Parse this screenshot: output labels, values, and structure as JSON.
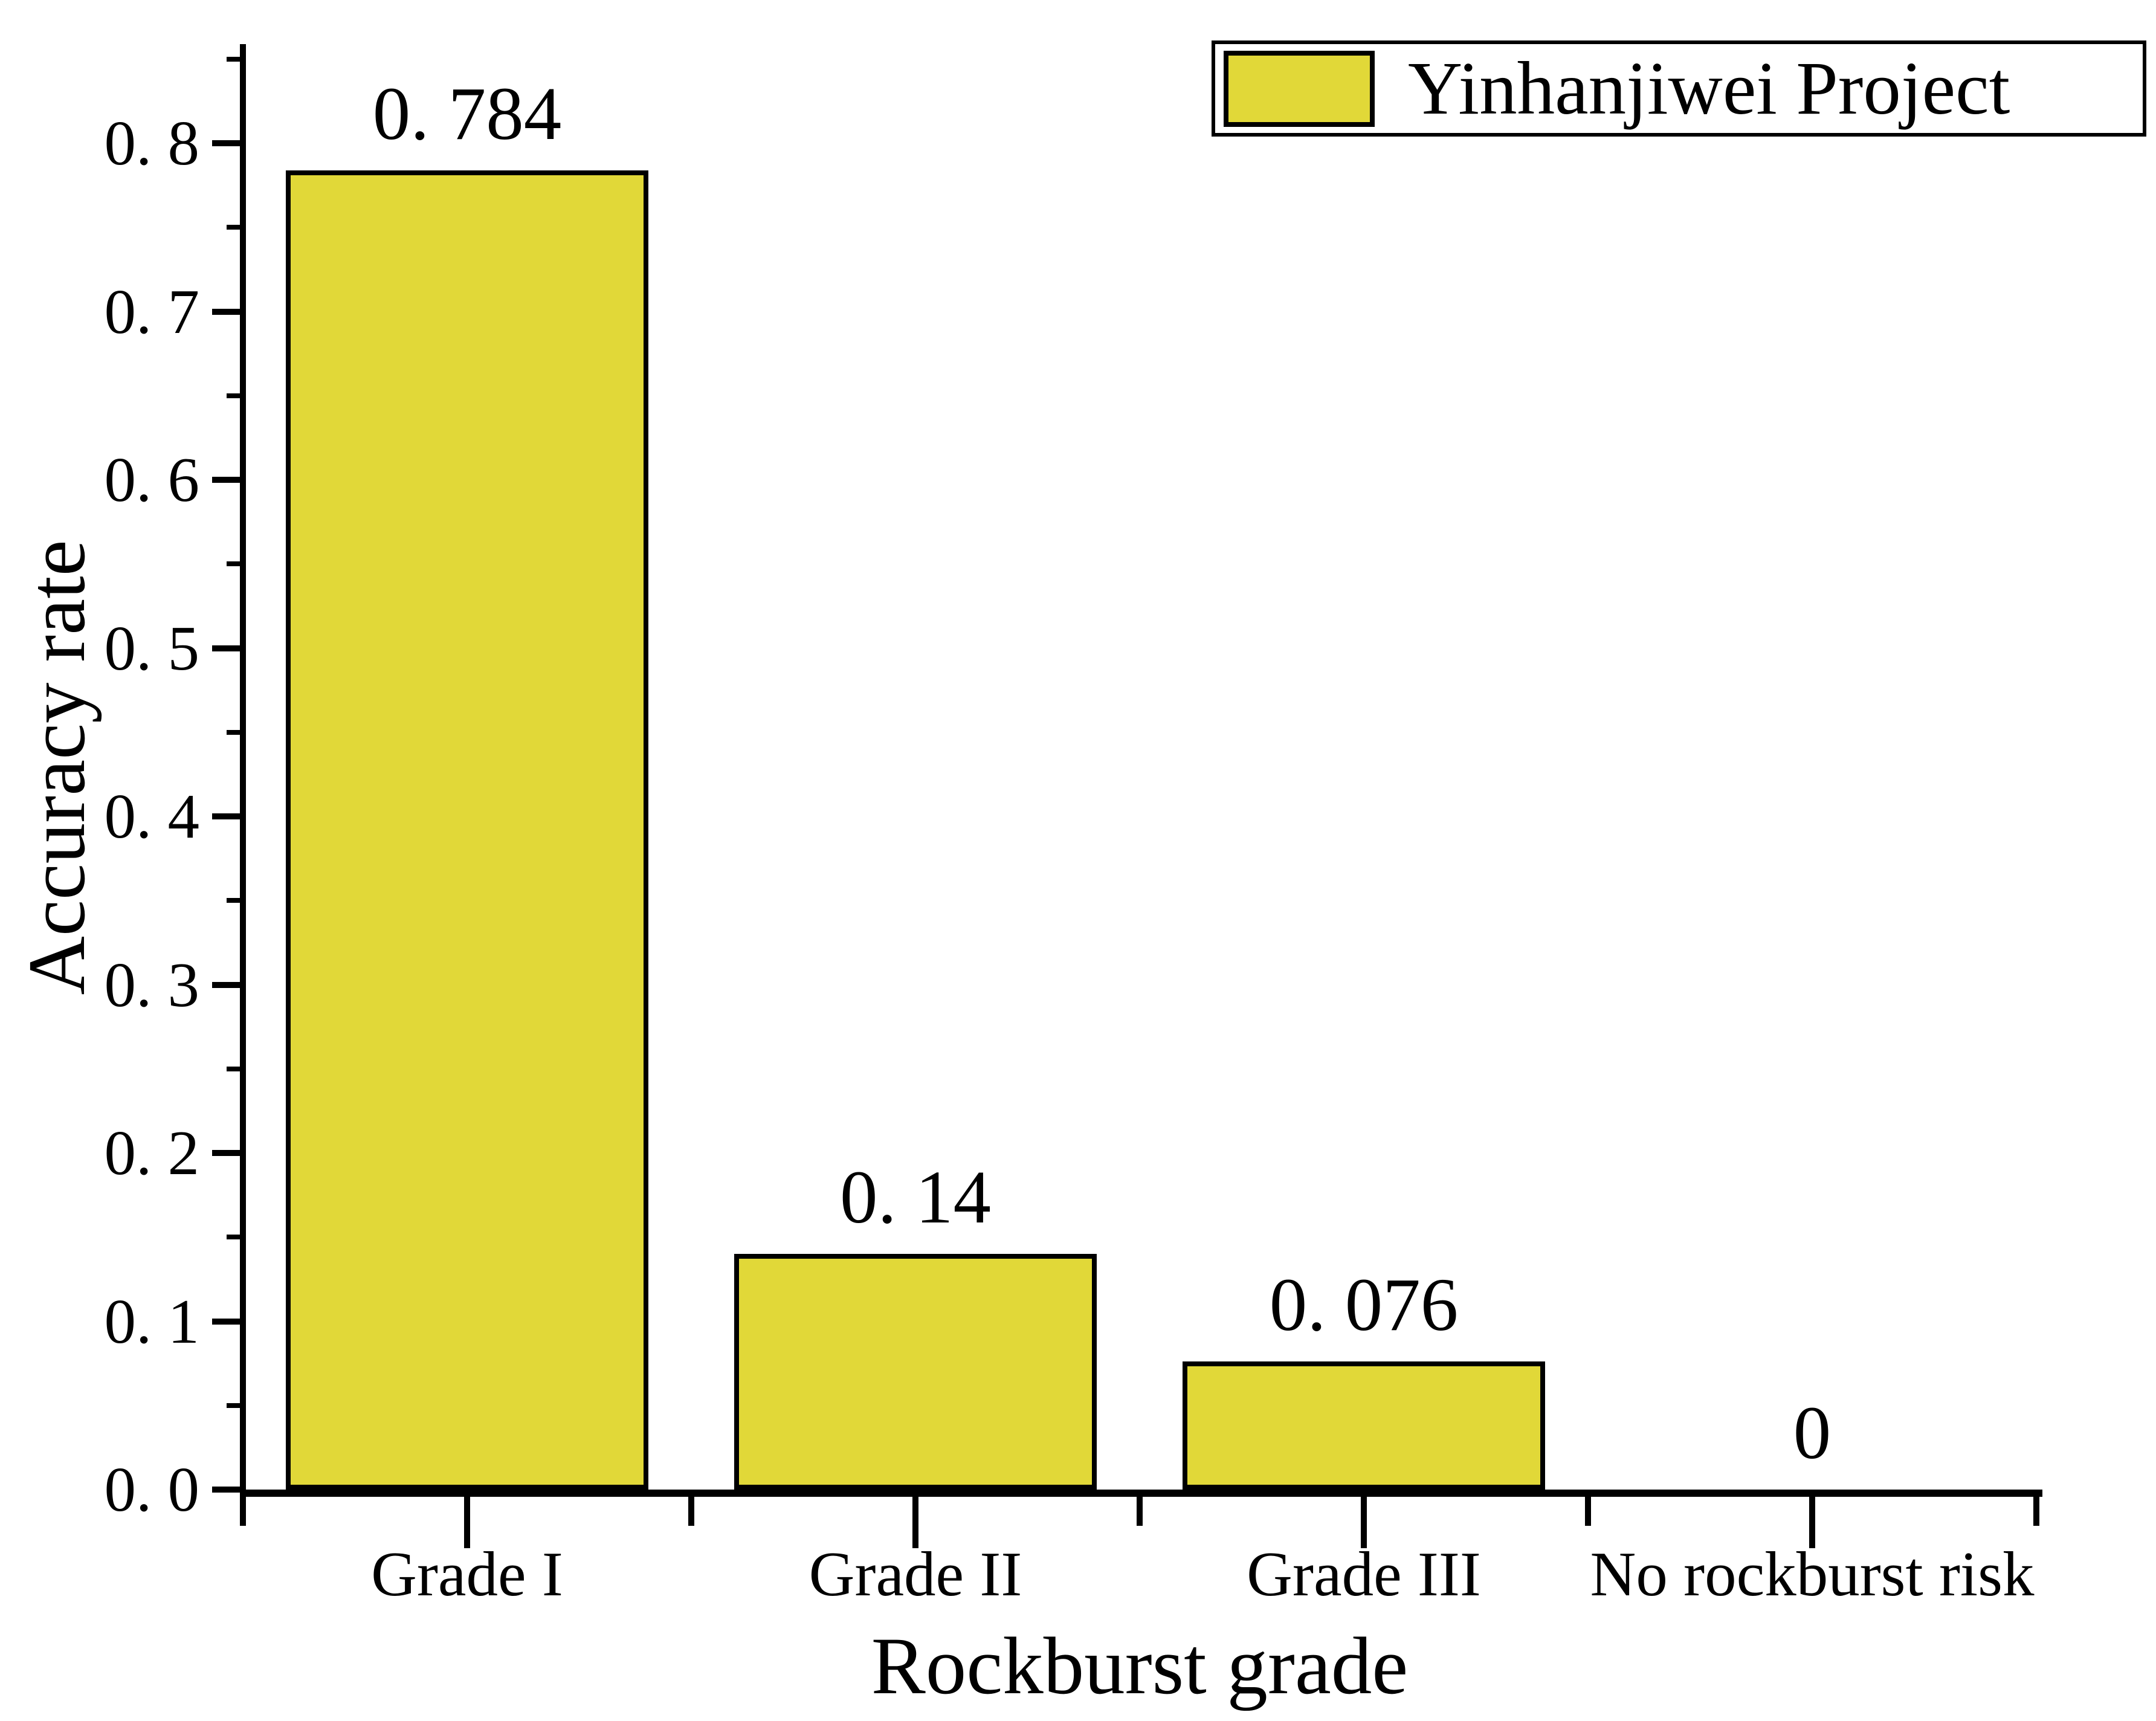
{
  "chart_data": {
    "type": "bar",
    "title": "",
    "categories": [
      "Grade I",
      "Grade II",
      "Grade III",
      "No rockburst risk"
    ],
    "values": [
      0.784,
      0.14,
      0.076,
      0
    ],
    "value_labels": [
      "0. 784",
      "0. 14",
      "0. 076",
      "0"
    ],
    "series": [
      {
        "name": "Yinhanjiwei Project",
        "values": [
          0.784,
          0.14,
          0.076,
          0
        ]
      }
    ],
    "xlabel": "Rockburst grade",
    "ylabel": "Accuracy rate",
    "ylim": [
      0,
      0.86
    ],
    "y_major_ticks": [
      {
        "v": 0.0,
        "label": "0. 0"
      },
      {
        "v": 0.1,
        "label": "0. 1"
      },
      {
        "v": 0.2,
        "label": "0. 2"
      },
      {
        "v": 0.3,
        "label": "0. 3"
      },
      {
        "v": 0.4,
        "label": "0. 4"
      },
      {
        "v": 0.5,
        "label": "0. 5"
      },
      {
        "v": 0.6,
        "label": "0. 6"
      },
      {
        "v": 0.7,
        "label": "0. 7"
      },
      {
        "v": 0.8,
        "label": "0. 8"
      }
    ],
    "y_minor_step": 0.05,
    "grid": false,
    "legend_position": "top-right",
    "bar_color": "#e1d838",
    "bar_border_color": "#000000",
    "axis_color": "#000000"
  },
  "legend": {
    "label": "Yinhanjiwei Project",
    "swatch_color": "#e1d838"
  }
}
